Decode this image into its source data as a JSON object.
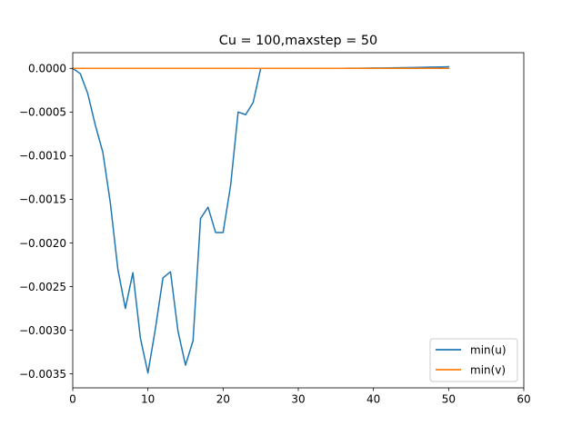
{
  "chart_data": {
    "type": "line",
    "title": "Cu = 100,maxstep = 50",
    "xlabel": "",
    "ylabel": "",
    "xlim": [
      0,
      60
    ],
    "ylim": [
      -0.00366,
      0.00018
    ],
    "xticks": [
      0,
      10,
      20,
      30,
      40,
      50,
      60
    ],
    "xtick_labels": [
      "0",
      "10",
      "20",
      "30",
      "40",
      "50",
      "60"
    ],
    "yticks": [
      0.0,
      -0.0005,
      -0.001,
      -0.0015,
      -0.002,
      -0.0025,
      -0.003,
      -0.0035
    ],
    "ytick_labels": [
      "0.0000",
      "−0.0005",
      "−0.0010",
      "−0.0015",
      "−0.0020",
      "−0.0025",
      "−0.0030",
      "−0.0035"
    ],
    "grid": false,
    "legend": "lower-right",
    "series": [
      {
        "name": "min(u)",
        "color": "#1f77b4",
        "x": [
          0,
          1,
          2,
          3,
          4,
          5,
          6,
          7,
          8,
          9,
          10,
          11,
          12,
          13,
          14,
          15,
          16,
          17,
          18,
          19,
          20,
          21,
          22,
          23,
          24,
          25,
          26,
          27,
          28,
          29,
          30,
          31,
          32,
          33,
          34,
          35,
          36,
          37,
          38,
          39,
          40,
          41,
          42,
          43,
          44,
          45,
          46,
          47,
          48,
          49,
          50
        ],
        "y": [
          0,
          -6e-05,
          -0.00029,
          -0.00065,
          -0.00096,
          -0.00154,
          -0.0023,
          -0.00275,
          -0.00234,
          -0.00309,
          -0.00349,
          -0.00298,
          -0.0024,
          -0.00233,
          -0.00301,
          -0.0034,
          -0.00312,
          -0.00172,
          -0.00159,
          -0.00188,
          -0.00188,
          -0.00134,
          -0.0005,
          -0.00053,
          -0.00039,
          0,
          0,
          0,
          0,
          0,
          0,
          0,
          0,
          0,
          0,
          1e-06,
          1e-06,
          2e-06,
          2e-06,
          3e-06,
          4e-06,
          5e-06,
          6e-06,
          7e-06,
          8e-06,
          1e-05,
          1.1e-05,
          1.3e-05,
          1.5e-05,
          1.6e-05,
          1.8e-05
        ]
      },
      {
        "name": "min(v)",
        "color": "#ff7f0e",
        "x": [
          0,
          50
        ],
        "y": [
          0,
          0
        ]
      }
    ]
  }
}
